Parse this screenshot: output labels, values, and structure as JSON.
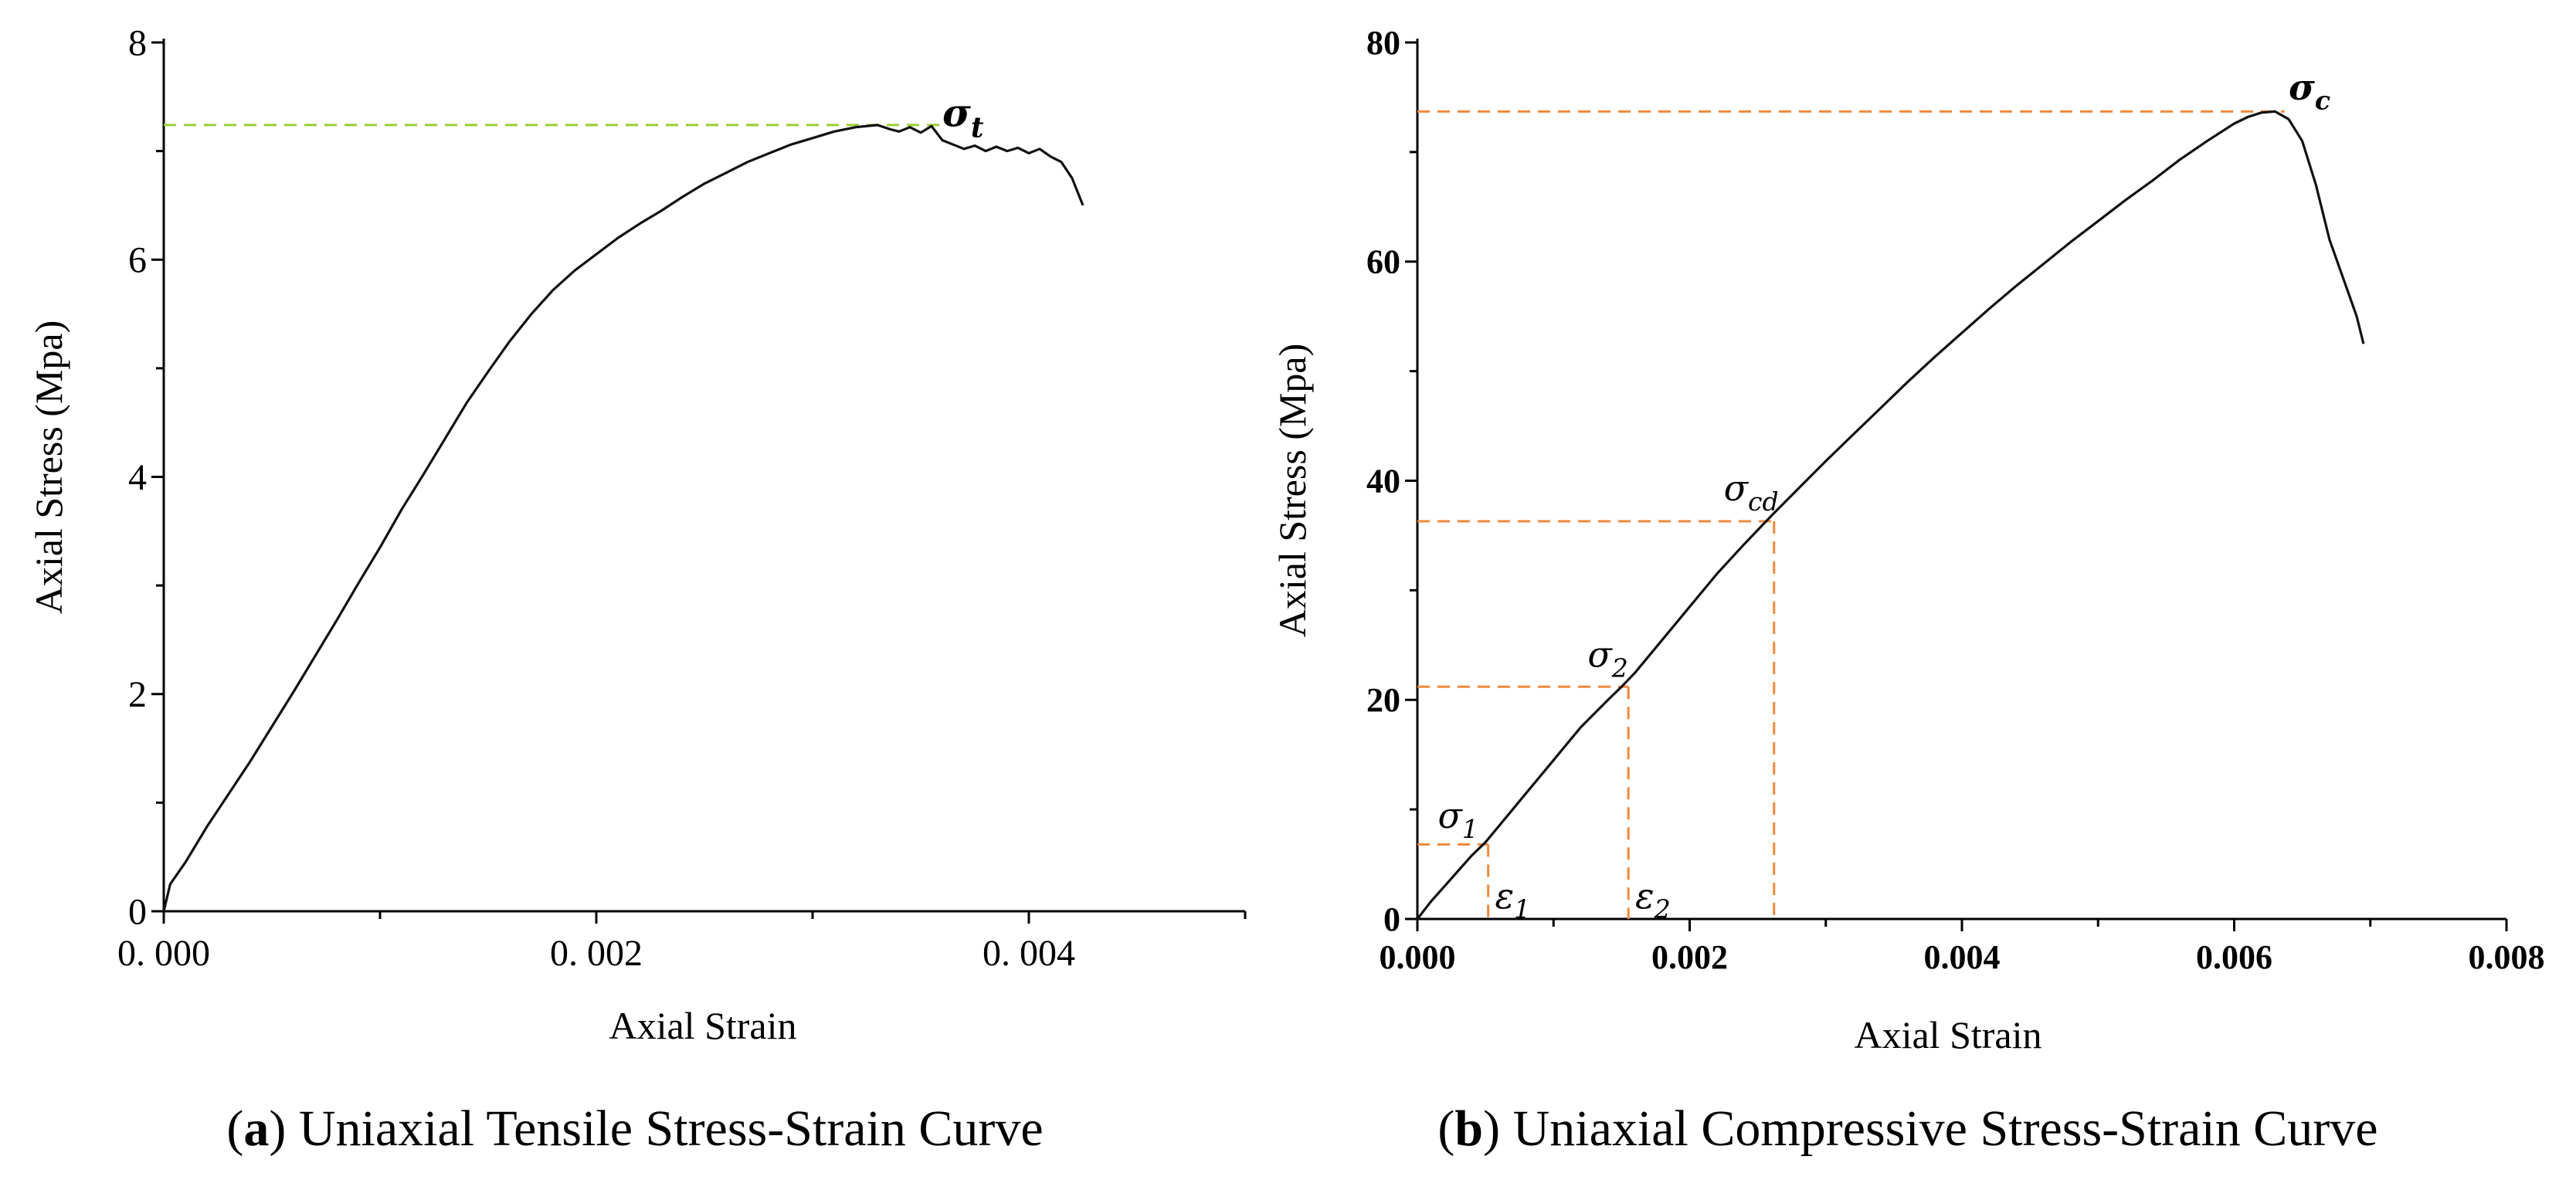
{
  "chart_data": [
    {
      "id": "a",
      "type": "line",
      "caption_prefix": "(",
      "caption_letter": "a",
      "caption_suffix": ")",
      "caption_text": " Uniaxial Tensile Stress-Strain Curve",
      "xlabel": "Axial Strain",
      "ylabel": "Axial Stress (Mpa)",
      "xlim": [
        0,
        0.005
      ],
      "ylim": [
        0,
        8
      ],
      "xticks": [
        0,
        0.001,
        0.002,
        0.003,
        0.004,
        0.005
      ],
      "xtick_labels": [
        "0. 000",
        "",
        "0. 002",
        "",
        "0. 004",
        ""
      ],
      "yticks": [
        0,
        1,
        2,
        3,
        4,
        5,
        6,
        7,
        8
      ],
      "ytick_labels": [
        "0",
        "",
        "2",
        "",
        "4",
        "",
        "6",
        "",
        "8"
      ],
      "guide_color": "#9acd32",
      "curve_color": "#111111",
      "series": [
        {
          "name": "tensile",
          "x": [
            0,
            3e-05,
            0.0001,
            0.0002,
            0.0003,
            0.0004,
            0.0005,
            0.0006,
            0.0007,
            0.0008,
            0.0009,
            0.001,
            0.0011,
            0.0012,
            0.0013,
            0.0014,
            0.0015,
            0.0016,
            0.0017,
            0.0018,
            0.0019,
            0.002,
            0.0021,
            0.0022,
            0.0023,
            0.0024,
            0.0025,
            0.0026,
            0.0027,
            0.0028,
            0.0029,
            0.003,
            0.0031,
            0.0032,
            0.0033,
            0.00336,
            0.0034,
            0.00345,
            0.0035,
            0.00355,
            0.0036,
            0.00365,
            0.0037,
            0.00375,
            0.0038,
            0.00385,
            0.0039,
            0.00395,
            0.004,
            0.00405,
            0.0041,
            0.00415,
            0.0042,
            0.00425
          ],
          "y": [
            0,
            0.25,
            0.45,
            0.78,
            1.08,
            1.38,
            1.7,
            2.02,
            2.35,
            2.68,
            3.02,
            3.35,
            3.7,
            4.02,
            4.35,
            4.68,
            4.97,
            5.25,
            5.5,
            5.72,
            5.9,
            6.05,
            6.2,
            6.33,
            6.45,
            6.58,
            6.7,
            6.8,
            6.9,
            6.98,
            7.06,
            7.12,
            7.18,
            7.22,
            7.24,
            7.2,
            7.18,
            7.22,
            7.17,
            7.23,
            7.1,
            7.06,
            7.02,
            7.05,
            7.0,
            7.04,
            7.0,
            7.03,
            6.98,
            7.02,
            6.95,
            6.9,
            6.75,
            6.5
          ]
        }
      ],
      "annotations": [
        {
          "label": "σ",
          "sub": "t",
          "bold": true,
          "x": 0.0036,
          "y": 7.23
        }
      ]
    },
    {
      "id": "b",
      "type": "line",
      "caption_prefix": "(",
      "caption_letter": "b",
      "caption_suffix": ")",
      "caption_text": " Uniaxial Compressive Stress-Strain Curve",
      "xlabel": "Axial Strain",
      "ylabel": "Axial Stress (Mpa)",
      "xlim": [
        0,
        0.008
      ],
      "ylim": [
        0,
        80
      ],
      "xticks": [
        0,
        0.001,
        0.002,
        0.003,
        0.004,
        0.005,
        0.006,
        0.007,
        0.008
      ],
      "xtick_labels": [
        "0.000",
        "",
        "0.002",
        "",
        "0.004",
        "",
        "0.006",
        "",
        "0.008"
      ],
      "yticks": [
        0,
        10,
        20,
        30,
        40,
        50,
        60,
        70,
        80
      ],
      "ytick_labels": [
        "0",
        "",
        "20",
        "",
        "40",
        "",
        "60",
        "",
        "80"
      ],
      "guide_color": "#f08a3c",
      "curve_color": "#111111",
      "series": [
        {
          "name": "compressive",
          "x": [
            0,
            0.0001,
            0.0002,
            0.0003,
            0.0004,
            0.0005,
            0.0006,
            0.0008,
            0.001,
            0.0012,
            0.0014,
            0.0015,
            0.0016,
            0.0018,
            0.002,
            0.0022,
            0.0024,
            0.0026,
            0.0028,
            0.003,
            0.0032,
            0.0034,
            0.0036,
            0.0038,
            0.004,
            0.0042,
            0.0044,
            0.0046,
            0.0048,
            0.005,
            0.0052,
            0.0054,
            0.0056,
            0.0058,
            0.006,
            0.0061,
            0.0062,
            0.0063,
            0.0064,
            0.0065,
            0.0066,
            0.0067,
            0.0068,
            0.0069,
            0.00695
          ],
          "y": [
            0,
            1.6,
            3.0,
            4.4,
            5.8,
            7.0,
            8.5,
            11.5,
            14.5,
            17.5,
            20.0,
            21.2,
            22.5,
            25.5,
            28.5,
            31.5,
            34.2,
            36.8,
            39.3,
            41.8,
            44.2,
            46.6,
            49.0,
            51.3,
            53.5,
            55.7,
            57.8,
            59.8,
            61.8,
            63.7,
            65.6,
            67.4,
            69.3,
            71.0,
            72.6,
            73.2,
            73.6,
            73.7,
            73.0,
            71.0,
            67.0,
            62.0,
            58.5,
            55.0,
            52.5
          ]
        }
      ],
      "guides": [
        {
          "x": 0.00052,
          "y": 6.8
        },
        {
          "x": 0.00155,
          "y": 21.2
        },
        {
          "x": 0.00262,
          "y": 36.3
        },
        {
          "x": 0.00637,
          "y": 73.7,
          "horizontal_only": true
        }
      ],
      "annotations": [
        {
          "label": "σ",
          "sub": "1",
          "bold": false,
          "x": 0.00015,
          "y": 8.3
        },
        {
          "label": "σ",
          "sub": "2",
          "bold": false,
          "x": 0.00125,
          "y": 23.0
        },
        {
          "label": "σ",
          "sub": "cd",
          "bold": false,
          "x": 0.00225,
          "y": 38.2
        },
        {
          "label": "σ",
          "sub": "c",
          "bold": true,
          "x": 0.0064,
          "y": 74.8
        },
        {
          "label": "ε",
          "sub": "1",
          "bold": false,
          "x": 0.00057,
          "y": 1.0
        },
        {
          "label": "ε",
          "sub": "2",
          "bold": false,
          "x": 0.0016,
          "y": 1.0
        }
      ]
    }
  ]
}
